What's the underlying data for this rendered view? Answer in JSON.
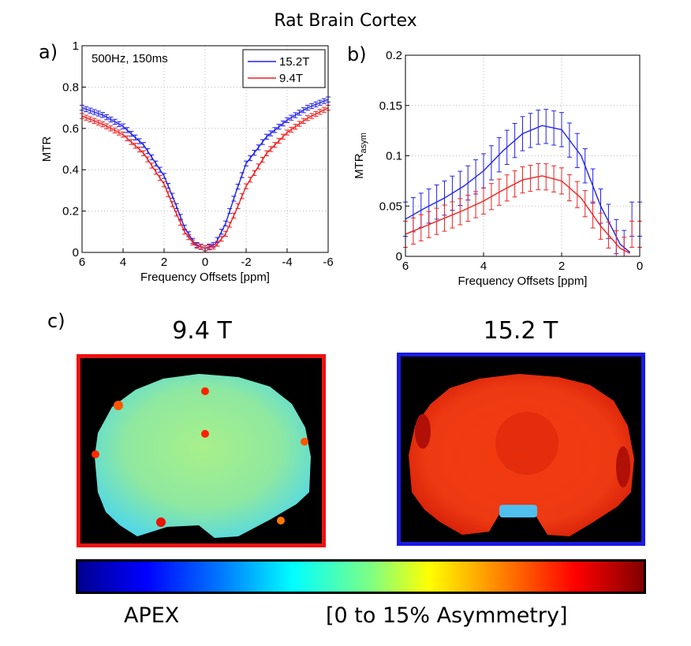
{
  "figure": {
    "title": "Rat Brain Cortex",
    "panel_labels": [
      "a)",
      "b)",
      "c)"
    ]
  },
  "chart_data": [
    {
      "type": "line",
      "panel": "a)",
      "title": "",
      "annotation": "500Hz, 150ms",
      "xlabel": "Frequency Offsets [ppm]",
      "ylabel": "MTR",
      "xlim": [
        6,
        -6
      ],
      "ylim": [
        0,
        1
      ],
      "x_reversed": true,
      "grid": true,
      "legend_position": "top-right",
      "x_ticks": [
        6,
        4,
        2,
        0,
        -2,
        -4,
        -6
      ],
      "x_tick_labels": [
        "6",
        "4",
        "2",
        "0",
        "-2",
        "-4",
        "-6"
      ],
      "y_ticks": [
        0,
        0.2,
        0.4,
        0.6,
        0.8,
        1
      ],
      "y_tick_labels": [
        "0",
        "0.2",
        "0.4",
        "0.6",
        "0.8",
        "1"
      ],
      "x": [
        6,
        5,
        4,
        3,
        2,
        1.5,
        1,
        0.5,
        0,
        -0.5,
        -1,
        -1.5,
        -2,
        -3,
        -4,
        -5,
        -6
      ],
      "series": [
        {
          "name": "15.2T",
          "color": "#2222ee",
          "values": [
            0.7,
            0.665,
            0.61,
            0.52,
            0.37,
            0.25,
            0.12,
            0.04,
            0.02,
            0.04,
            0.14,
            0.29,
            0.43,
            0.56,
            0.64,
            0.7,
            0.74
          ],
          "error": 0.012
        },
        {
          "name": "9.4T",
          "color": "#ee2222",
          "values": [
            0.66,
            0.62,
            0.57,
            0.48,
            0.33,
            0.21,
            0.1,
            0.035,
            0.02,
            0.03,
            0.09,
            0.2,
            0.32,
            0.48,
            0.58,
            0.65,
            0.7
          ],
          "error": 0.012
        }
      ]
    },
    {
      "type": "line",
      "panel": "b)",
      "title": "",
      "xlabel": "Frequency Offsets [ppm]",
      "ylabel": "MTR",
      "ylabel_subscript": "asym",
      "xlim": [
        6,
        0
      ],
      "ylim": [
        0,
        0.2
      ],
      "x_reversed": true,
      "grid": true,
      "x_ticks": [
        6,
        4,
        2,
        0
      ],
      "x_tick_labels": [
        "6",
        "4",
        "2",
        "0"
      ],
      "y_ticks": [
        0,
        0.05,
        0.1,
        0.15,
        0.2
      ],
      "y_tick_labels": [
        "0",
        "0.05",
        "0.1",
        "0.15",
        "0.2"
      ],
      "x": [
        6,
        5.5,
        5,
        4.5,
        4,
        3.5,
        3,
        2.5,
        2,
        1.5,
        1,
        0.5,
        0.25
      ],
      "series": [
        {
          "name": "15.2T",
          "color": "#2222ee",
          "values": [
            0.037,
            0.048,
            0.058,
            0.07,
            0.085,
            0.105,
            0.122,
            0.13,
            0.126,
            0.1,
            0.05,
            0.012,
            0.004
          ],
          "error": 0.017
        },
        {
          "name": "9.4T",
          "color": "#ee2222",
          "values": [
            0.022,
            0.03,
            0.038,
            0.046,
            0.055,
            0.066,
            0.076,
            0.08,
            0.075,
            0.058,
            0.03,
            0.008,
            0.003
          ],
          "error": 0.013
        }
      ]
    }
  ],
  "maps": {
    "left": {
      "title": "9.4 T",
      "frame_color": "#ee1111"
    },
    "right": {
      "title": "15.2 T",
      "frame_color": "#1a1ae0"
    }
  },
  "colorbar": {
    "left_label": "APEX",
    "right_label": "[0 to 15% Asymmetry]"
  }
}
